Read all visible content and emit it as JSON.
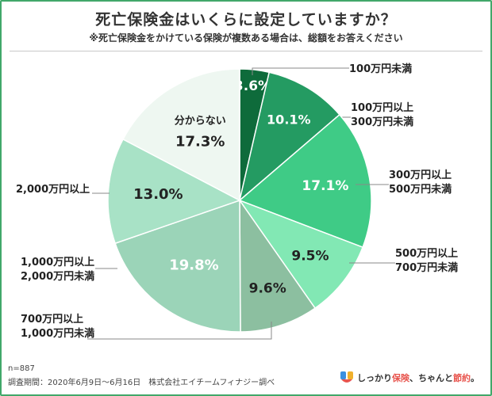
{
  "header": {
    "title": "死亡保険金はいくらに設定していますか？",
    "subtitle": "※死亡保険金をかけている保険が複数ある場合は、総額をお答えください"
  },
  "footer": {
    "sample": "n=887",
    "survey": "調査期間：2020年6月9日〜6月16日　株式会社エイチームフィナジー調べ"
  },
  "logo": {
    "text_prefix": "しっかり",
    "text_accent1": "保険",
    "text_mid": "、ちゃんと",
    "text_accent2": "節約",
    "text_suffix": "。"
  },
  "chart_data": {
    "type": "pie",
    "start": "12 o'clock",
    "direction": "clockwise",
    "slices": [
      {
        "label_lines": [
          "100万円未満"
        ],
        "value": 3.6,
        "display": "3.6%",
        "color": "#0e6b3b",
        "text_color": "#ffffff"
      },
      {
        "label_lines": [
          "100万円以上",
          "300万円未満"
        ],
        "value": 10.1,
        "display": "10.1%",
        "color": "#249b62",
        "text_color": "#ffffff"
      },
      {
        "label_lines": [
          "300万円以上",
          "500万円未満"
        ],
        "value": 17.1,
        "display": "17.1%",
        "color": "#3fcb86",
        "text_color": "#ffffff"
      },
      {
        "label_lines": [
          "500万円以上",
          "700万円未満"
        ],
        "value": 9.5,
        "display": "9.5%",
        "color": "#82e8b4",
        "text_color": "#222222"
      },
      {
        "label_lines": [
          "700万円以上",
          "1,000万円未満"
        ],
        "value": 9.6,
        "display": "9.6%",
        "color": "#8cbfa0",
        "text_color": "#222222"
      },
      {
        "label_lines": [
          "1,000万円以上",
          "2,000万円未満"
        ],
        "value": 19.8,
        "display": "19.8%",
        "color": "#9bd4b8",
        "text_color": "#ffffff"
      },
      {
        "label_lines": [
          "2,000万円以上"
        ],
        "value": 13.0,
        "display": "13.0%",
        "color": "#a8e2c6",
        "text_color": "#222222"
      },
      {
        "label_lines": [
          "分からない"
        ],
        "value": 17.3,
        "display": "17.3%",
        "color": "#eef7f1",
        "text_color": "#222222",
        "label_inside": true
      }
    ]
  }
}
